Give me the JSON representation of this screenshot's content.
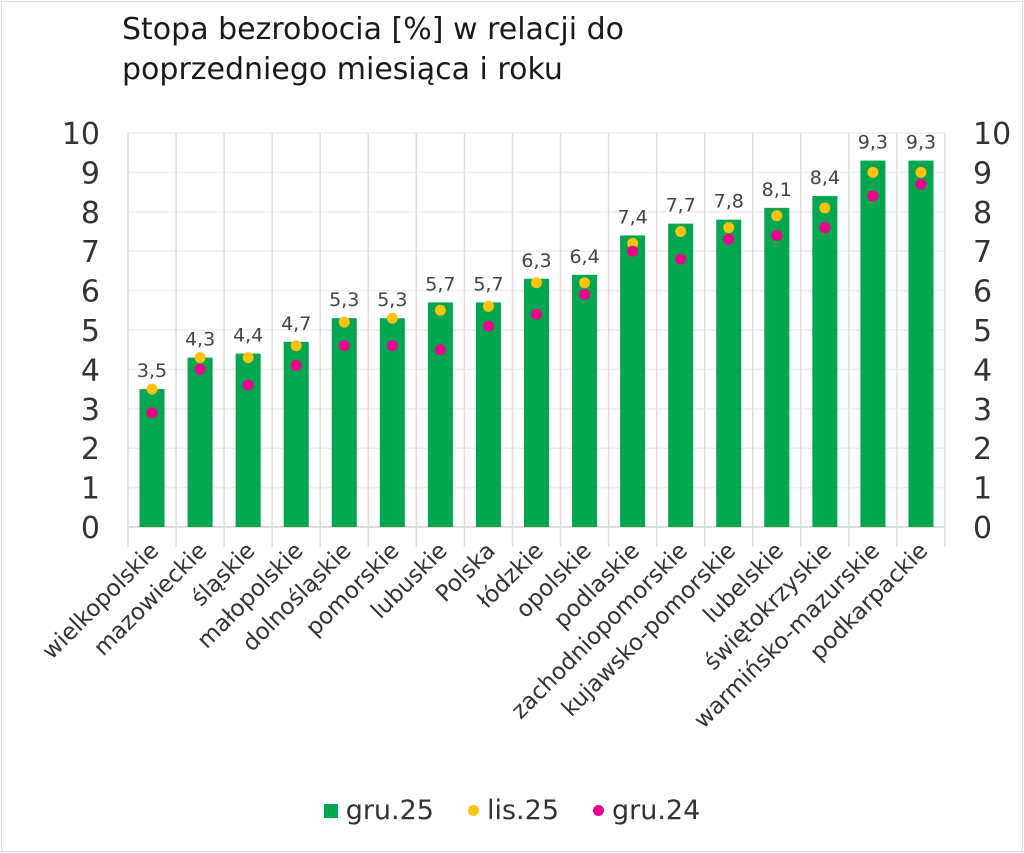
{
  "chart_data": {
    "type": "bar",
    "title": "Stopa bezrobocia [%] w relacji do\npoprzedniego miesiąca i roku",
    "categories": [
      "wielkopolskie",
      "mazowieckie",
      "śląskie",
      "małopolskie",
      "dolnośląskie",
      "pomorskie",
      "lubuskie",
      "Polska",
      "łódzkie",
      "opolskie",
      "podlaskie",
      "zachodniopomorskie",
      "kujawsko-pomorskie",
      "lubelskie",
      "świętokrzyskie",
      "warmińsko-mazurskie",
      "podkarpackie"
    ],
    "series": [
      {
        "name": "gru.25",
        "kind": "bar",
        "color": "#00a650",
        "values": [
          3.5,
          4.3,
          4.4,
          4.7,
          5.3,
          5.3,
          5.7,
          5.7,
          6.3,
          6.4,
          7.4,
          7.7,
          7.8,
          8.1,
          8.4,
          9.3,
          9.3
        ],
        "labels": [
          "3,5",
          "4,3",
          "4,4",
          "4,7",
          "5,3",
          "5,3",
          "5,7",
          "5,7",
          "6,3",
          "6,4",
          "7,4",
          "7,7",
          "7,8",
          "8,1",
          "8,4",
          "9,3",
          "9,3"
        ]
      },
      {
        "name": "lis.25",
        "kind": "dot",
        "color": "#ffc20e",
        "values": [
          3.5,
          4.3,
          4.3,
          4.6,
          5.2,
          5.3,
          5.5,
          5.6,
          6.2,
          6.2,
          7.2,
          7.5,
          7.6,
          7.9,
          8.1,
          9.0,
          9.0
        ]
      },
      {
        "name": "gru.24",
        "kind": "dot",
        "color": "#ec008c",
        "values": [
          2.9,
          4.0,
          3.6,
          4.1,
          4.6,
          4.6,
          4.5,
          5.1,
          5.4,
          5.9,
          7.0,
          6.8,
          7.3,
          7.4,
          7.6,
          8.4,
          8.7
        ]
      }
    ],
    "ylim": [
      0,
      10
    ],
    "yticks": [
      "0",
      "1",
      "2",
      "3",
      "4",
      "5",
      "6",
      "7",
      "8",
      "9",
      "10"
    ],
    "secondary_axis": true,
    "grid": true,
    "legend": "bottom"
  }
}
